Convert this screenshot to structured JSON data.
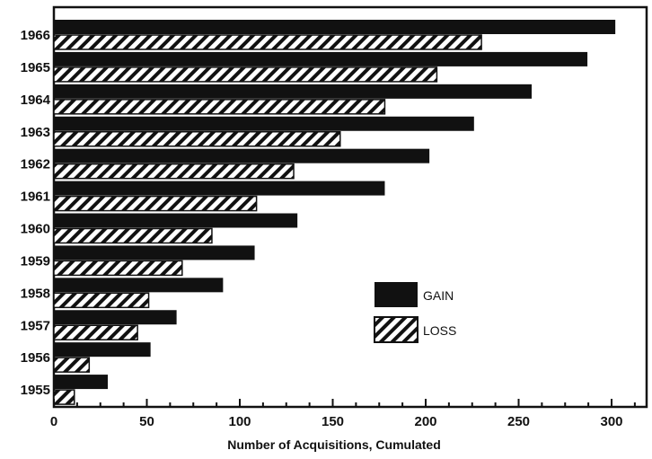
{
  "chart_data": {
    "type": "bar",
    "orientation": "horizontal",
    "title": "",
    "xlabel": "Number of Acquisitions, Cumulated",
    "ylabel": "",
    "categories": [
      "1966",
      "1965",
      "1964",
      "1963",
      "1962",
      "1961",
      "1960",
      "1959",
      "1958",
      "1957",
      "1956",
      "1955"
    ],
    "series": [
      {
        "name": "GAIN",
        "style": "solid",
        "color": "#111111",
        "values": [
          302,
          287,
          257,
          226,
          202,
          178,
          131,
          108,
          91,
          66,
          52,
          29
        ]
      },
      {
        "name": "LOSS",
        "style": "hatched",
        "color": "#111111",
        "values": [
          230,
          206,
          178,
          154,
          129,
          109,
          85,
          69,
          51,
          45,
          19,
          11
        ]
      }
    ],
    "xlim": [
      0,
      320
    ],
    "xticks": [
      0,
      50,
      100,
      150,
      200,
      250,
      300
    ],
    "grid": false,
    "legend": "center-right"
  }
}
